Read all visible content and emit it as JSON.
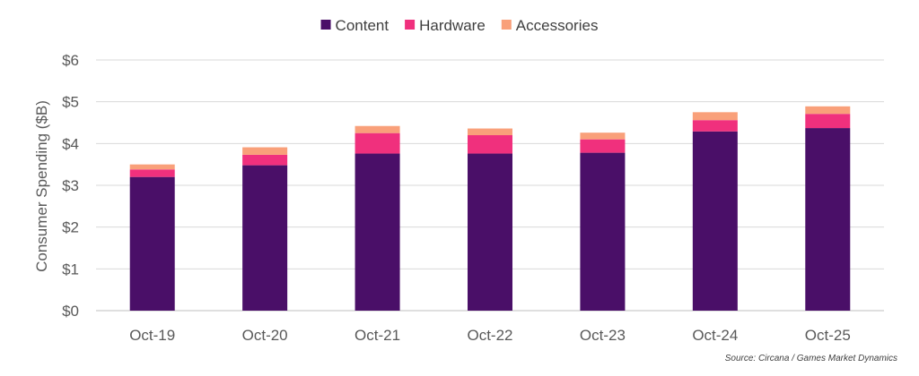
{
  "chart_data": {
    "type": "bar",
    "stacked": true,
    "categories": [
      "Oct-19",
      "Oct-20",
      "Oct-21",
      "Oct-22",
      "Oct-23",
      "Oct-24",
      "Oct-25"
    ],
    "series": [
      {
        "name": "Content",
        "color": "#4a0f68",
        "values": [
          3.2,
          3.48,
          3.76,
          3.76,
          3.78,
          4.29,
          4.37
        ]
      },
      {
        "name": "Hardware",
        "color": "#f0307d",
        "values": [
          0.18,
          0.25,
          0.49,
          0.44,
          0.32,
          0.27,
          0.34
        ]
      },
      {
        "name": "Accessories",
        "color": "#f9a07a",
        "values": [
          0.12,
          0.18,
          0.17,
          0.16,
          0.16,
          0.19,
          0.18
        ]
      }
    ],
    "ylabel": "Consumer Spending ($B)",
    "ylim": [
      0,
      6
    ],
    "y_ticks": [
      0,
      1,
      2,
      3,
      4,
      5,
      6
    ],
    "y_tick_labels": [
      "$0",
      "$1",
      "$2",
      "$3",
      "$4",
      "$5",
      "$6"
    ],
    "grid": true,
    "legend_position": "top-center",
    "source": "Source: Circana / Games Market Dynamics"
  }
}
